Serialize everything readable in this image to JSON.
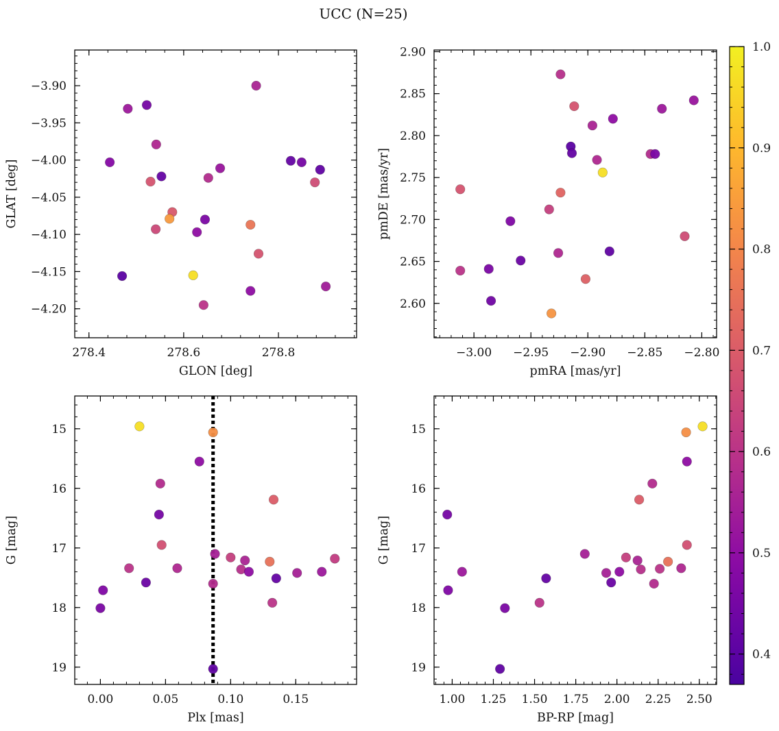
{
  "title": "UCC (N=25)",
  "colorbar": {
    "min": 0.37,
    "max": 1.0,
    "ticks": [
      0.4,
      0.5,
      0.6,
      0.7,
      0.8,
      0.9,
      1.0
    ],
    "colormap": "plasma",
    "colormap_range": [
      0.12,
      0.98
    ]
  },
  "chart_data": [
    {
      "id": "glon-glat",
      "type": "scatter",
      "xlabel": "GLON [deg]",
      "ylabel": "GLAT [deg]",
      "xlim": [
        278.37,
        278.965
      ],
      "ylim": [
        -4.239,
        -3.852
      ],
      "xticks": [
        278.4,
        278.6,
        278.8
      ],
      "xtick_labels": [
        "278.4",
        "278.6",
        "278.8"
      ],
      "yticks": [
        -3.9,
        -3.95,
        -4.0,
        -4.05,
        -4.1,
        -4.15,
        -4.2
      ],
      "ytick_labels": [
        "−3.90",
        "−3.95",
        "−4.00",
        "−4.05",
        "−4.10",
        "−4.15",
        "−4.20"
      ],
      "points": [
        {
          "x": 278.753,
          "y": -3.9,
          "c": 0.56
        },
        {
          "x": 278.522,
          "y": -3.926,
          "c": 0.45
        },
        {
          "x": 278.482,
          "y": -3.931,
          "c": 0.53
        },
        {
          "x": 278.542,
          "y": -3.979,
          "c": 0.57
        },
        {
          "x": 278.444,
          "y": -4.003,
          "c": 0.48
        },
        {
          "x": 278.826,
          "y": -4.001,
          "c": 0.42
        },
        {
          "x": 278.849,
          "y": -4.003,
          "c": 0.45
        },
        {
          "x": 278.677,
          "y": -4.011,
          "c": 0.52
        },
        {
          "x": 278.888,
          "y": -4.013,
          "c": 0.41
        },
        {
          "x": 278.553,
          "y": -4.022,
          "c": 0.42
        },
        {
          "x": 278.652,
          "y": -4.024,
          "c": 0.58
        },
        {
          "x": 278.53,
          "y": -4.029,
          "c": 0.68
        },
        {
          "x": 278.877,
          "y": -4.03,
          "c": 0.66
        },
        {
          "x": 278.576,
          "y": -4.07,
          "c": 0.69
        },
        {
          "x": 278.57,
          "y": -4.079,
          "c": 0.84
        },
        {
          "x": 278.645,
          "y": -4.08,
          "c": 0.46
        },
        {
          "x": 278.741,
          "y": -4.087,
          "c": 0.76
        },
        {
          "x": 278.541,
          "y": -4.093,
          "c": 0.65
        },
        {
          "x": 278.628,
          "y": -4.097,
          "c": 0.5
        },
        {
          "x": 278.758,
          "y": -4.126,
          "c": 0.68
        },
        {
          "x": 278.62,
          "y": -4.155,
          "c": 0.97
        },
        {
          "x": 278.47,
          "y": -4.156,
          "c": 0.4
        },
        {
          "x": 278.741,
          "y": -4.176,
          "c": 0.5
        },
        {
          "x": 278.9,
          "y": -4.17,
          "c": 0.54
        },
        {
          "x": 278.642,
          "y": -4.195,
          "c": 0.6
        }
      ]
    },
    {
      "id": "pm",
      "type": "scatter",
      "xlabel": "pmRA [mas/yr]",
      "ylabel": "pmDE [mas/yr]",
      "xlim": [
        -3.035,
        -2.787
      ],
      "ylim": [
        2.559,
        2.902
      ],
      "xticks": [
        -3.0,
        -2.95,
        -2.9,
        -2.85,
        -2.8
      ],
      "xtick_labels": [
        "−3.00",
        "−2.95",
        "−2.90",
        "−2.85",
        "−2.80"
      ],
      "yticks": [
        2.6,
        2.65,
        2.7,
        2.75,
        2.8,
        2.85,
        2.9
      ],
      "ytick_labels": [
        "2.60",
        "2.65",
        "2.70",
        "2.75",
        "2.80",
        "2.85",
        "2.90"
      ],
      "points": [
        {
          "x": -2.924,
          "y": 2.873,
          "c": 0.59
        },
        {
          "x": -2.807,
          "y": 2.842,
          "c": 0.52
        },
        {
          "x": -2.912,
          "y": 2.835,
          "c": 0.68
        },
        {
          "x": -2.835,
          "y": 2.832,
          "c": 0.53
        },
        {
          "x": -2.878,
          "y": 2.82,
          "c": 0.5
        },
        {
          "x": -2.896,
          "y": 2.812,
          "c": 0.56
        },
        {
          "x": -2.915,
          "y": 2.787,
          "c": 0.4
        },
        {
          "x": -2.914,
          "y": 2.779,
          "c": 0.42
        },
        {
          "x": -2.845,
          "y": 2.778,
          "c": 0.58
        },
        {
          "x": -2.841,
          "y": 2.778,
          "c": 0.46
        },
        {
          "x": -2.892,
          "y": 2.771,
          "c": 0.57
        },
        {
          "x": -2.887,
          "y": 2.756,
          "c": 0.97
        },
        {
          "x": -3.012,
          "y": 2.736,
          "c": 0.68
        },
        {
          "x": -2.924,
          "y": 2.732,
          "c": 0.72
        },
        {
          "x": -2.934,
          "y": 2.712,
          "c": 0.63
        },
        {
          "x": -2.968,
          "y": 2.698,
          "c": 0.47
        },
        {
          "x": -2.815,
          "y": 2.68,
          "c": 0.66
        },
        {
          "x": -2.881,
          "y": 2.662,
          "c": 0.41
        },
        {
          "x": -2.926,
          "y": 2.66,
          "c": 0.57
        },
        {
          "x": -2.959,
          "y": 2.651,
          "c": 0.43
        },
        {
          "x": -2.987,
          "y": 2.641,
          "c": 0.46
        },
        {
          "x": -3.012,
          "y": 2.639,
          "c": 0.6
        },
        {
          "x": -2.902,
          "y": 2.629,
          "c": 0.71
        },
        {
          "x": -2.985,
          "y": 2.603,
          "c": 0.44
        },
        {
          "x": -2.932,
          "y": 2.588,
          "c": 0.83
        }
      ]
    },
    {
      "id": "plx-g",
      "type": "scatter",
      "xlabel": "Plx [mas]",
      "ylabel": "G [mag]",
      "xlim": [
        -0.0197,
        0.1967
      ],
      "ylim": [
        19.29,
        14.45
      ],
      "y_inverted": true,
      "xticks": [
        0.0,
        0.05,
        0.1,
        0.15
      ],
      "xtick_labels": [
        "0.00",
        "0.05",
        "0.10",
        "0.15"
      ],
      "yticks": [
        15,
        16,
        17,
        18,
        19
      ],
      "ytick_labels": [
        "15",
        "16",
        "17",
        "18",
        "19"
      ],
      "vline": {
        "x": 0.0865,
        "color": "#000000"
      },
      "points": [
        {
          "x": 0.03,
          "y": 14.96,
          "c": 0.97
        },
        {
          "x": 0.0865,
          "y": 15.06,
          "c": 0.82
        },
        {
          "x": 0.076,
          "y": 15.55,
          "c": 0.5
        },
        {
          "x": 0.046,
          "y": 15.92,
          "c": 0.58
        },
        {
          "x": 0.133,
          "y": 16.19,
          "c": 0.7
        },
        {
          "x": 0.045,
          "y": 16.44,
          "c": 0.45
        },
        {
          "x": 0.047,
          "y": 16.95,
          "c": 0.67
        },
        {
          "x": 0.088,
          "y": 17.1,
          "c": 0.55
        },
        {
          "x": 0.1,
          "y": 17.16,
          "c": 0.63
        },
        {
          "x": 0.18,
          "y": 17.18,
          "c": 0.62
        },
        {
          "x": 0.111,
          "y": 17.21,
          "c": 0.56
        },
        {
          "x": 0.13,
          "y": 17.23,
          "c": 0.75
        },
        {
          "x": 0.022,
          "y": 17.34,
          "c": 0.6
        },
        {
          "x": 0.059,
          "y": 17.34,
          "c": 0.57
        },
        {
          "x": 0.108,
          "y": 17.36,
          "c": 0.59
        },
        {
          "x": 0.114,
          "y": 17.4,
          "c": 0.5
        },
        {
          "x": 0.17,
          "y": 17.4,
          "c": 0.53
        },
        {
          "x": 0.151,
          "y": 17.42,
          "c": 0.55
        },
        {
          "x": 0.135,
          "y": 17.51,
          "c": 0.42
        },
        {
          "x": 0.035,
          "y": 17.58,
          "c": 0.43
        },
        {
          "x": 0.0865,
          "y": 17.6,
          "c": 0.58
        },
        {
          "x": 0.002,
          "y": 17.71,
          "c": 0.47
        },
        {
          "x": 0.132,
          "y": 17.92,
          "c": 0.6
        },
        {
          "x": 0.0,
          "y": 18.01,
          "c": 0.46
        },
        {
          "x": 0.0865,
          "y": 19.03,
          "c": 0.41
        }
      ]
    },
    {
      "id": "color-mag",
      "type": "scatter",
      "xlabel": "BP-RP [mag]",
      "ylabel": "G [mag]",
      "xlim": [
        0.89,
        2.605
      ],
      "ylim": [
        19.29,
        14.45
      ],
      "y_inverted": true,
      "xticks": [
        1.0,
        1.25,
        1.5,
        1.75,
        2.0,
        2.25,
        2.5
      ],
      "xtick_labels": [
        "1.00",
        "1.25",
        "1.50",
        "1.75",
        "2.00",
        "2.25",
        "2.50"
      ],
      "yticks": [
        15,
        16,
        17,
        18,
        19
      ],
      "ytick_labels": [
        "15",
        "16",
        "17",
        "18",
        "19"
      ],
      "points": [
        {
          "x": 2.52,
          "y": 14.96,
          "c": 0.97
        },
        {
          "x": 2.42,
          "y": 15.06,
          "c": 0.82
        },
        {
          "x": 2.425,
          "y": 15.55,
          "c": 0.5
        },
        {
          "x": 2.215,
          "y": 15.92,
          "c": 0.58
        },
        {
          "x": 2.135,
          "y": 16.19,
          "c": 0.7
        },
        {
          "x": 0.97,
          "y": 16.44,
          "c": 0.45
        },
        {
          "x": 2.425,
          "y": 16.95,
          "c": 0.67
        },
        {
          "x": 1.805,
          "y": 17.1,
          "c": 0.55
        },
        {
          "x": 2.055,
          "y": 17.16,
          "c": 0.63
        },
        {
          "x": 2.125,
          "y": 17.21,
          "c": 0.56
        },
        {
          "x": 2.31,
          "y": 17.23,
          "c": 0.75
        },
        {
          "x": 2.39,
          "y": 17.34,
          "c": 0.57
        },
        {
          "x": 2.26,
          "y": 17.35,
          "c": 0.6
        },
        {
          "x": 2.145,
          "y": 17.36,
          "c": 0.59
        },
        {
          "x": 2.015,
          "y": 17.4,
          "c": 0.5
        },
        {
          "x": 1.06,
          "y": 17.4,
          "c": 0.53
        },
        {
          "x": 1.935,
          "y": 17.42,
          "c": 0.55
        },
        {
          "x": 1.57,
          "y": 17.51,
          "c": 0.42
        },
        {
          "x": 1.965,
          "y": 17.58,
          "c": 0.43
        },
        {
          "x": 2.225,
          "y": 17.6,
          "c": 0.58
        },
        {
          "x": 0.975,
          "y": 17.71,
          "c": 0.47
        },
        {
          "x": 1.53,
          "y": 17.92,
          "c": 0.6
        },
        {
          "x": 1.32,
          "y": 18.01,
          "c": 0.46
        },
        {
          "x": 1.29,
          "y": 19.03,
          "c": 0.41
        }
      ]
    }
  ]
}
